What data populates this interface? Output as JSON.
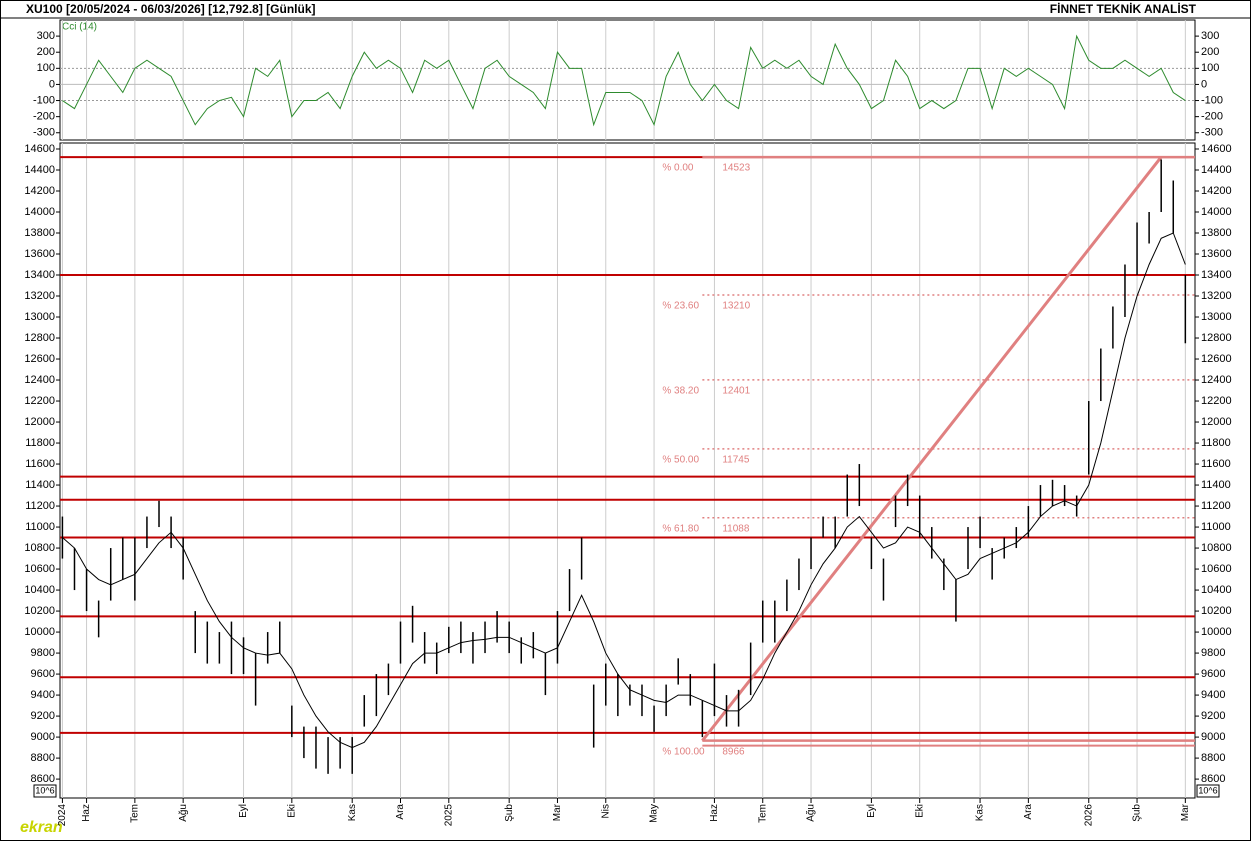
{
  "header": {
    "left": "XU100  [20/05/2024 - 06/03/2026]  [12,792.8]  [Günlük]",
    "right": "FİNNET TEKNİK ANALİST"
  },
  "watermark": "ekran",
  "chart_data": [
    {
      "type": "line",
      "title": "Cci (14)",
      "xlim": [
        -0.2,
        93.8
      ],
      "ylim": [
        -345,
        400
      ],
      "yticks": [
        300,
        200,
        100,
        0,
        -100,
        -200,
        -300
      ],
      "series": [
        {
          "color": "#2e8b2e",
          "values": [
            -100,
            -150,
            0,
            150,
            50,
            -50,
            100,
            150,
            100,
            50,
            -100,
            -250,
            -150,
            -100,
            -80,
            -200,
            100,
            50,
            150,
            -200,
            -100,
            -100,
            -50,
            -150,
            50,
            200,
            100,
            150,
            100,
            -50,
            150,
            100,
            150,
            0,
            -150,
            100,
            150,
            50,
            0,
            -50,
            -150,
            200,
            100,
            100,
            -250,
            -50,
            -50,
            -50,
            -100,
            -250,
            50,
            200,
            0,
            -100,
            0,
            -100,
            -150,
            230,
            100,
            150,
            100,
            150,
            50,
            0,
            250,
            100,
            0,
            -150,
            -100,
            150,
            50,
            -150,
            -100,
            -150,
            -100,
            100,
            100,
            -150,
            100,
            50,
            100,
            50,
            0,
            -150,
            300,
            150,
            100,
            100,
            150,
            100,
            50,
            100,
            -50,
            -100
          ]
        }
      ]
    },
    {
      "type": "ohlc",
      "xlim": [
        -0.2,
        93.8
      ],
      "ylim": [
        8420,
        14657
      ],
      "yticks": [
        8600,
        8800,
        9000,
        9200,
        9400,
        9600,
        9800,
        10000,
        10200,
        10400,
        10600,
        10800,
        11000,
        11200,
        11400,
        11600,
        11800,
        12000,
        12200,
        12400,
        12600,
        12800,
        13000,
        13200,
        13400,
        13600,
        13800,
        14000,
        14200,
        14400,
        14600
      ],
      "xticks": [
        {
          "value": 0,
          "label": "2024"
        },
        {
          "value": 2,
          "label": "Haz"
        },
        {
          "value": 6,
          "label": "Tem"
        },
        {
          "value": 10,
          "label": "Ağu"
        },
        {
          "value": 15,
          "label": "Eyl"
        },
        {
          "value": 19,
          "label": "Eki"
        },
        {
          "value": 24,
          "label": "Kas"
        },
        {
          "value": 28,
          "label": "Ara"
        },
        {
          "value": 32,
          "label": "2025"
        },
        {
          "value": 37,
          "label": "Şub"
        },
        {
          "value": 41,
          "label": "Mar"
        },
        {
          "value": 45,
          "label": "Nis"
        },
        {
          "value": 49,
          "label": "May"
        },
        {
          "value": 54,
          "label": "Haz"
        },
        {
          "value": 58,
          "label": "Tem"
        },
        {
          "value": 62,
          "label": "Ağu"
        },
        {
          "value": 67,
          "label": "Eyl"
        },
        {
          "value": 71,
          "label": "Eki"
        },
        {
          "value": 76,
          "label": "Kas"
        },
        {
          "value": 80,
          "label": "Ara"
        },
        {
          "value": 85,
          "label": "2026"
        },
        {
          "value": 89,
          "label": "Şub"
        },
        {
          "value": 93,
          "label": "Mar"
        }
      ],
      "color": "#000000",
      "high": [
        11100,
        10800,
        10600,
        10300,
        10800,
        10900,
        10900,
        11100,
        11250,
        11100,
        10900,
        10200,
        10100,
        10000,
        10100,
        9950,
        9800,
        10000,
        10100,
        9300,
        9100,
        9100,
        9000,
        9000,
        9000,
        9400,
        9600,
        9700,
        10100,
        10250,
        10000,
        9900,
        10050,
        10100,
        10000,
        10100,
        10200,
        10100,
        9950,
        10000,
        9800,
        10200,
        10600,
        10900,
        9500,
        9700,
        9600,
        9500,
        9500,
        9300,
        9500,
        9750,
        9600,
        9350,
        9700,
        9400,
        9450,
        9900,
        10300,
        10300,
        10500,
        10700,
        10900,
        11100,
        11100,
        11500,
        11600,
        10900,
        10700,
        11300,
        11500,
        11300,
        11000,
        10700,
        10500,
        11000,
        11100,
        10800,
        10900,
        11000,
        11200,
        11400,
        11450,
        11400,
        11300,
        12200,
        12700,
        13100,
        13500,
        13900,
        14000,
        14500,
        14300,
        13400
      ],
      "low": [
        10700,
        10400,
        10200,
        9950,
        10300,
        10500,
        10300,
        10800,
        11000,
        10800,
        10500,
        9800,
        9700,
        9700,
        9600,
        9600,
        9300,
        9700,
        9800,
        9000,
        8800,
        8700,
        8650,
        8700,
        8650,
        9100,
        9200,
        9400,
        9700,
        9900,
        9700,
        9600,
        9800,
        9800,
        9700,
        9800,
        9900,
        9800,
        9700,
        9750,
        9400,
        9700,
        10200,
        10500,
        8900,
        9300,
        9200,
        9300,
        9200,
        9050,
        9200,
        9500,
        9300,
        9000,
        9200,
        9100,
        9100,
        9400,
        9900,
        9900,
        10200,
        10400,
        10600,
        10900,
        10800,
        11100,
        11200,
        10600,
        10300,
        11000,
        11200,
        10900,
        10700,
        10400,
        10100,
        10600,
        10800,
        10500,
        10700,
        10800,
        10900,
        11100,
        11200,
        11200,
        11100,
        11500,
        12200,
        12700,
        13000,
        13400,
        13700,
        14000,
        13800,
        12750
      ],
      "moving_average": {
        "color": "#000000",
        "values": [
          10900,
          10800,
          10600,
          10500,
          10450,
          10500,
          10550,
          10700,
          10850,
          10950,
          10800,
          10550,
          10300,
          10100,
          9950,
          9850,
          9800,
          9780,
          9800,
          9650,
          9400,
          9200,
          9050,
          8950,
          8900,
          8950,
          9100,
          9300,
          9500,
          9700,
          9800,
          9800,
          9850,
          9900,
          9920,
          9930,
          9950,
          9950,
          9900,
          9850,
          9800,
          9850,
          10100,
          10350,
          10100,
          9800,
          9600,
          9450,
          9400,
          9350,
          9330,
          9400,
          9400,
          9350,
          9300,
          9250,
          9250,
          9350,
          9550,
          9800,
          10000,
          10200,
          10450,
          10650,
          10800,
          11000,
          11100,
          10950,
          10800,
          10850,
          11000,
          10950,
          10800,
          10650,
          10500,
          10550,
          10700,
          10750,
          10800,
          10850,
          10950,
          11100,
          11200,
          11250,
          11200,
          11400,
          11800,
          12300,
          12800,
          13200,
          13500,
          13750,
          13800,
          13500
        ]
      },
      "levels": {
        "color": "#c00000",
        "values": [
          14523,
          13400,
          11480,
          11260,
          10900,
          10150,
          9570,
          9040
        ]
      },
      "fibonacci": {
        "color": "#e08080",
        "start_index": 53,
        "end_index": 91,
        "levels": [
          {
            "label": "% 0.00",
            "value": 14523
          },
          {
            "label": "% 23.60",
            "value": 13210
          },
          {
            "label": "% 38.20",
            "value": 12401
          },
          {
            "label": "% 50.00",
            "value": 11745
          },
          {
            "label": "% 61.80",
            "value": 11088
          },
          {
            "label": "% 100.00",
            "value": 8966
          }
        ]
      },
      "scale_label": "10^6"
    }
  ]
}
